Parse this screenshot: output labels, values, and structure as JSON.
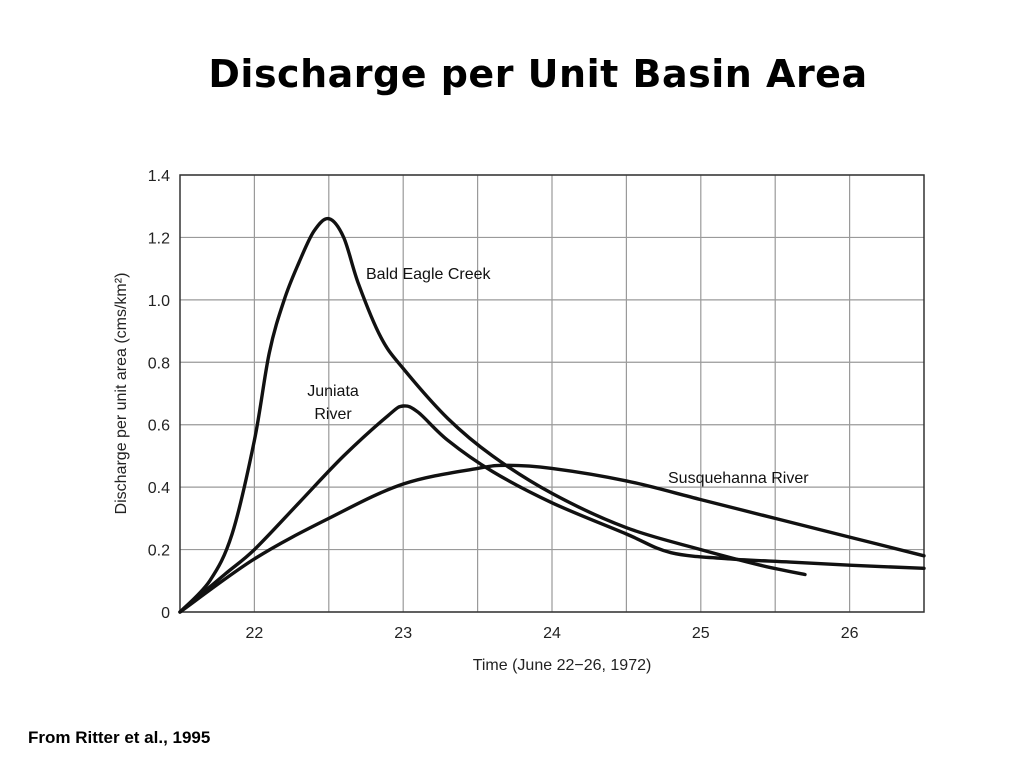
{
  "title": "Discharge per Unit Basin Area",
  "source": "From Ritter et al., 1995",
  "chart_data": {
    "type": "line",
    "xlabel": "Time (June 22−26, 1972)",
    "ylabel": "Discharge per unit area (cms/km²)",
    "xlim": [
      21.5,
      26.5
    ],
    "ylim": [
      0,
      1.4
    ],
    "x_ticks": [
      "22",
      "23",
      "24",
      "25",
      "26"
    ],
    "y_ticks": [
      "0",
      "0.2",
      "0.4",
      "0.6",
      "0.8",
      "1.0",
      "1.2",
      "1.4"
    ],
    "grid": true,
    "series": [
      {
        "name": "Bald Eagle Creek",
        "label_lines": [
          "Bald Eagle Creek"
        ],
        "x": [
          21.5,
          21.7,
          21.85,
          22.0,
          22.1,
          22.2,
          22.3,
          22.4,
          22.5,
          22.6,
          22.7,
          22.85,
          23.0,
          23.3,
          23.6,
          24.0,
          24.5,
          25.0,
          25.4,
          25.7
        ],
        "y": [
          0.0,
          0.1,
          0.25,
          0.55,
          0.83,
          1.0,
          1.12,
          1.22,
          1.26,
          1.2,
          1.05,
          0.88,
          0.78,
          0.62,
          0.5,
          0.38,
          0.27,
          0.2,
          0.15,
          0.12
        ]
      },
      {
        "name": "Juniata River",
        "label_lines": [
          "Juniata",
          "River"
        ],
        "x": [
          21.5,
          21.8,
          22.0,
          22.3,
          22.6,
          22.9,
          23.0,
          23.1,
          23.3,
          23.6,
          24.0,
          24.5,
          24.8,
          25.2,
          25.6,
          26.0,
          26.5
        ],
        "y": [
          0.0,
          0.12,
          0.2,
          0.35,
          0.5,
          0.63,
          0.66,
          0.64,
          0.55,
          0.45,
          0.35,
          0.25,
          0.19,
          0.17,
          0.16,
          0.15,
          0.14
        ]
      },
      {
        "name": "Susquehanna River",
        "label_lines": [
          "Susquehanna River"
        ],
        "x": [
          21.5,
          22.0,
          22.5,
          23.0,
          23.5,
          23.7,
          24.0,
          24.5,
          25.0,
          25.5,
          26.0,
          26.5
        ],
        "y": [
          0.0,
          0.17,
          0.3,
          0.41,
          0.46,
          0.47,
          0.46,
          0.42,
          0.36,
          0.3,
          0.24,
          0.18
        ]
      }
    ]
  }
}
